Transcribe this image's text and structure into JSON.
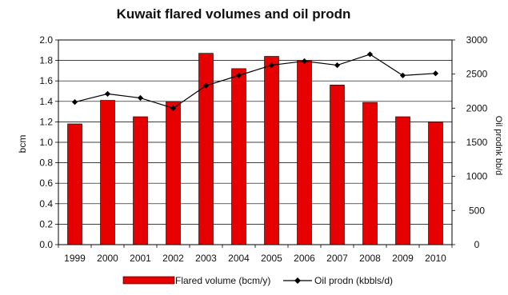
{
  "chart_data": {
    "type": "bar",
    "title": "Kuwait flared volumes and oil prodn",
    "xlabel": "",
    "ylabel": "bcm",
    "y2label": "Oil prodnk bb/d",
    "categories": [
      "1999",
      "2000",
      "2001",
      "2002",
      "2003",
      "2004",
      "2005",
      "2006",
      "2007",
      "2008",
      "2009",
      "2010"
    ],
    "ylim": [
      0,
      2.0
    ],
    "yticks": [
      "0.0",
      "0.2",
      "0.4",
      "0.6",
      "0.8",
      "1.0",
      "1.2",
      "1.4",
      "1.6",
      "1.8",
      "2.0"
    ],
    "y2lim": [
      0,
      3000
    ],
    "y2ticks": [
      "0",
      "500",
      "1000",
      "1500",
      "2000",
      "2500",
      "3000"
    ],
    "grid": true,
    "legend_position": "bottom",
    "series": [
      {
        "name": "Flared volume (bcm/y)",
        "type": "bar",
        "axis": "left",
        "color": "#e60000",
        "values": [
          1.18,
          1.41,
          1.25,
          1.4,
          1.87,
          1.72,
          1.84,
          1.8,
          1.56,
          1.39,
          1.25,
          1.2
        ]
      },
      {
        "name": "Oil prodn (kbbls/d)",
        "type": "line",
        "axis": "right",
        "color": "#000000",
        "values": [
          2090,
          2210,
          2150,
          2000,
          2330,
          2480,
          2630,
          2690,
          2630,
          2790,
          2480,
          2510
        ]
      }
    ]
  }
}
